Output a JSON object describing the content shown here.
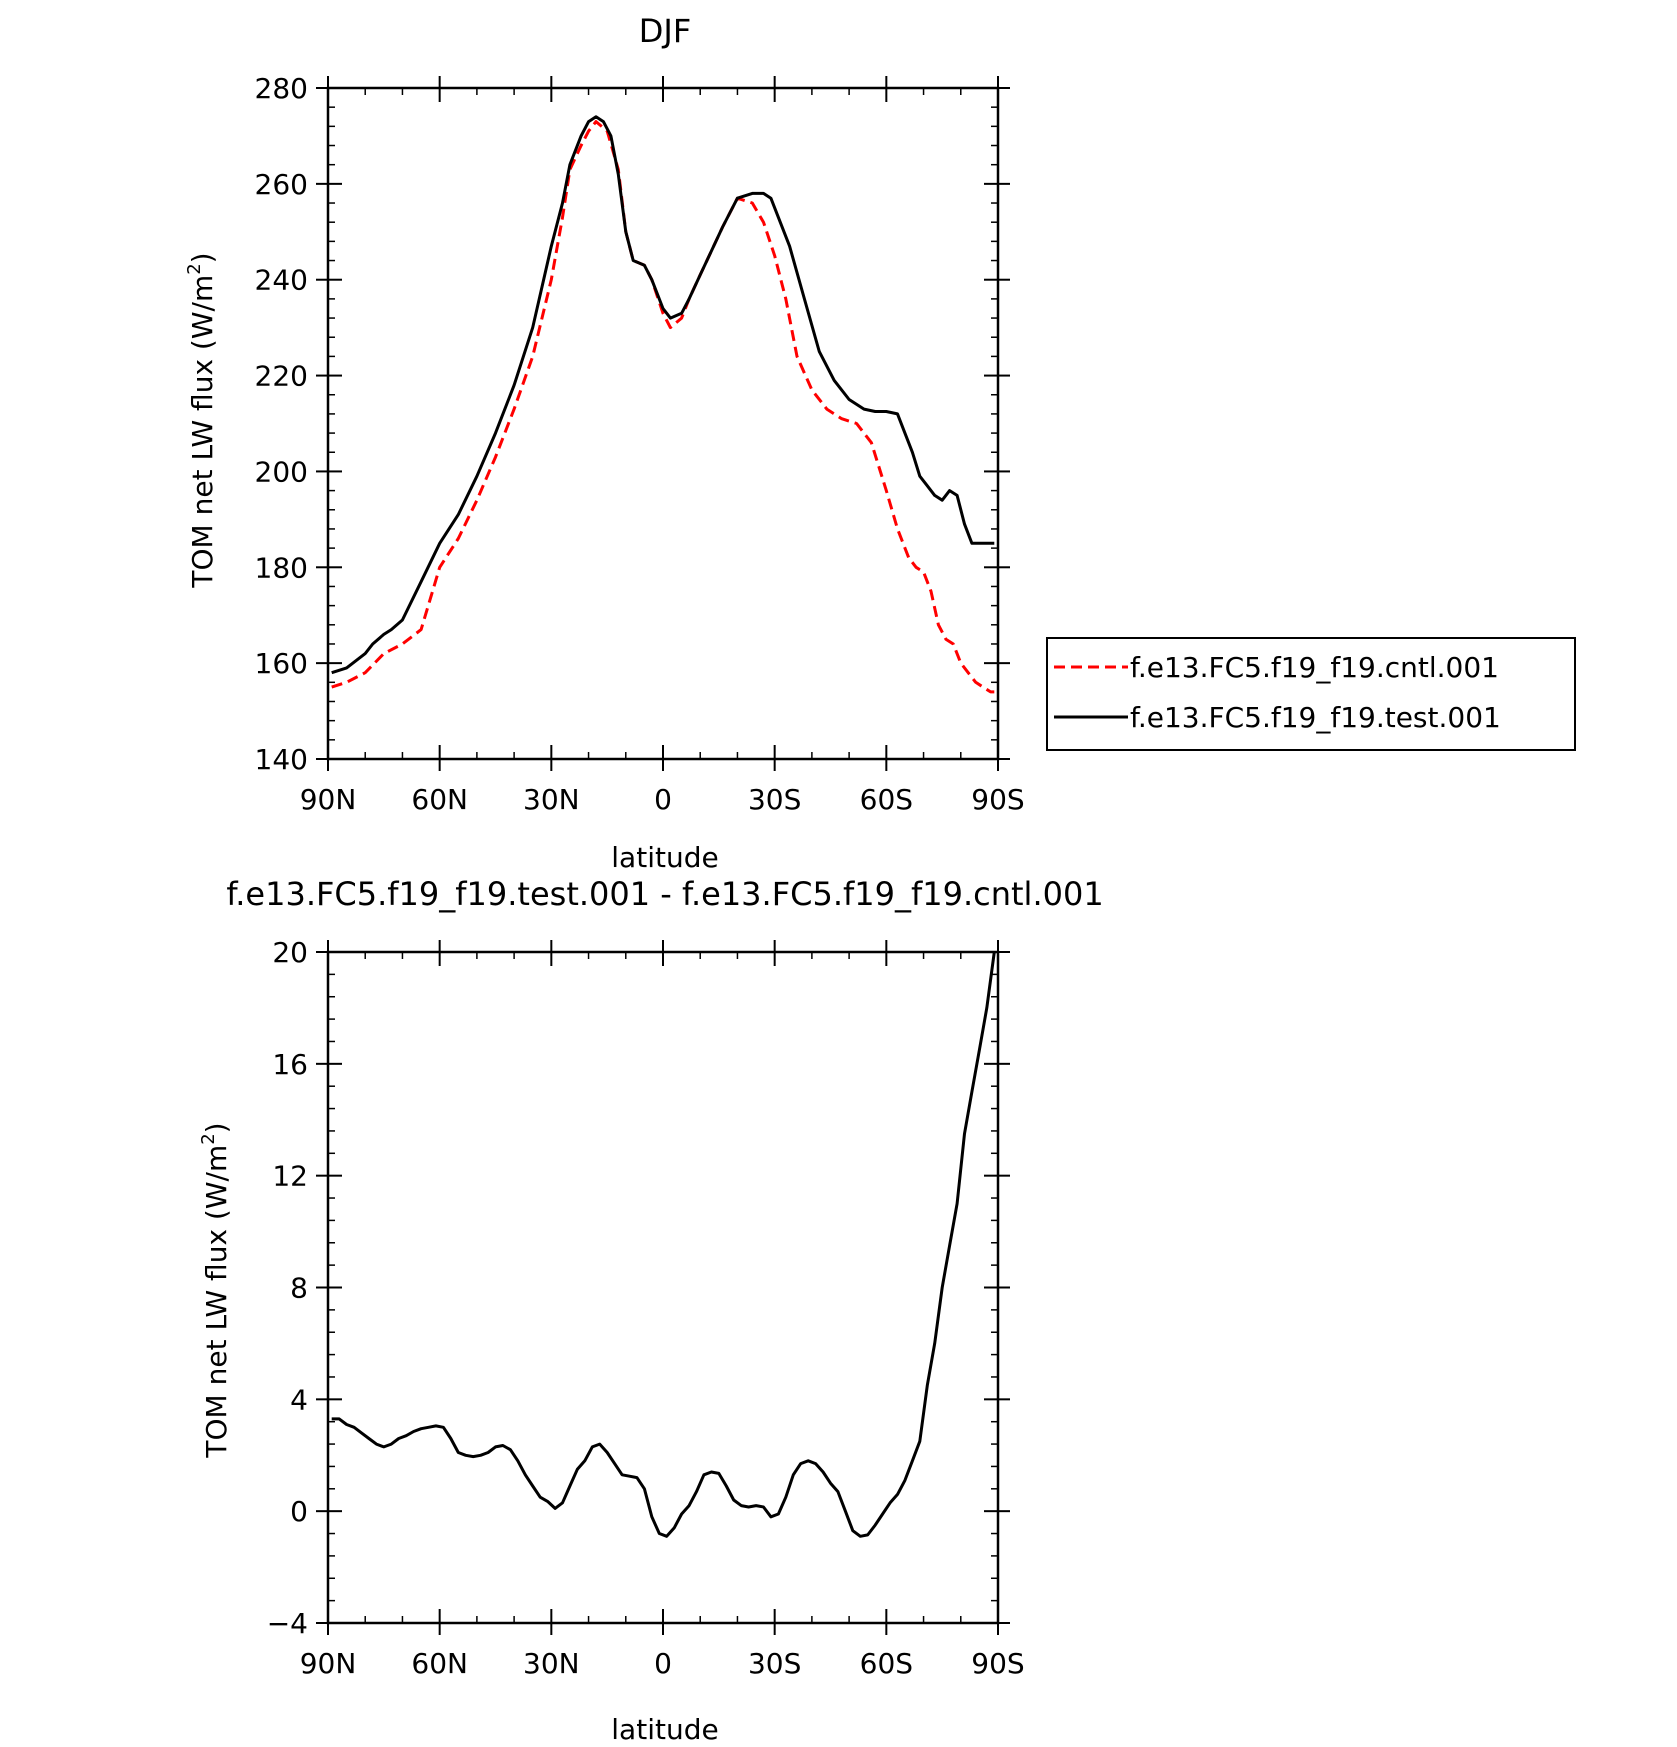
{
  "chart_data": [
    {
      "type": "line",
      "title": "DJF",
      "xlabel": "latitude",
      "ylabel": "TOM net LW flux (W/m",
      "ylabel_sup": "2",
      "ylabel_close": ")",
      "ylim": [
        140,
        280
      ],
      "yticks": [
        140,
        160,
        180,
        200,
        220,
        240,
        260,
        280
      ],
      "xlim": [
        90,
        -90
      ],
      "xticks": [
        90,
        60,
        30,
        0,
        -30,
        -60,
        -90
      ],
      "xtick_labels": [
        "90N",
        "60N",
        "30N",
        "0",
        "30S",
        "60S",
        "90S"
      ],
      "legend_position": "right",
      "series": [
        {
          "name": "f.e13.FC5.f19_f19.cntl.001",
          "color": "#ff0000",
          "dash": true,
          "x": [
            89,
            85,
            80,
            75,
            70,
            65,
            60,
            55,
            50,
            45,
            40,
            35,
            30,
            27,
            25,
            22,
            20,
            18,
            15,
            12,
            10,
            8,
            5,
            3,
            0,
            -2,
            -5,
            -7,
            -10,
            -13,
            -16,
            -20,
            -24,
            -27,
            -30,
            -33,
            -36,
            -40,
            -44,
            -48,
            -52,
            -56,
            -60,
            -63,
            -66,
            -68,
            -70,
            -72,
            -74,
            -76,
            -78,
            -80,
            -82,
            -84,
            -86,
            -88,
            -89
          ],
          "values": [
            155,
            156,
            158,
            162,
            164,
            167,
            180,
            186,
            194,
            203,
            213,
            224,
            240,
            253,
            263,
            268,
            271,
            273,
            271,
            263,
            250,
            244,
            243,
            240,
            233,
            230,
            232,
            236,
            241,
            246,
            251,
            257,
            256,
            252,
            245,
            236,
            224,
            217,
            213,
            211,
            210,
            206,
            196,
            188,
            182,
            180,
            179,
            175,
            168,
            165,
            164,
            160,
            158,
            156,
            155,
            154,
            154
          ]
        },
        {
          "name": "f.e13.FC5.f19_f19.test.001",
          "color": "#000000",
          "dash": false,
          "x": [
            89,
            85,
            80,
            78,
            75,
            73,
            70,
            65,
            60,
            55,
            50,
            45,
            40,
            35,
            30,
            27,
            25,
            22,
            20,
            18,
            16,
            14,
            12,
            10,
            8,
            5,
            3,
            0,
            -2,
            -5,
            -7,
            -10,
            -13,
            -16,
            -20,
            -24,
            -27,
            -29,
            -31,
            -34,
            -38,
            -42,
            -46,
            -50,
            -54,
            -57,
            -60,
            -63,
            -65,
            -67,
            -69,
            -71,
            -73,
            -75,
            -77,
            -79,
            -81,
            -83,
            -85,
            -87,
            -89
          ],
          "values": [
            158,
            159,
            162,
            164,
            166,
            167,
            169,
            177,
            185,
            191,
            199,
            208,
            218,
            230,
            247,
            256,
            264,
            270,
            273,
            274,
            273,
            270,
            262,
            250,
            244,
            243,
            240,
            234,
            232,
            233,
            236,
            241,
            246,
            251,
            257,
            258,
            258,
            257,
            253,
            247,
            236,
            225,
            219,
            215,
            213,
            212.5,
            212.5,
            212,
            208,
            204,
            199,
            197,
            195,
            194,
            196,
            195,
            189,
            185,
            185,
            185,
            185
          ]
        }
      ]
    },
    {
      "type": "line",
      "title": "f.e13.FC5.f19_f19.test.001 - f.e13.FC5.f19_f19.cntl.001",
      "xlabel": "latitude",
      "ylabel": "TOM net LW flux (W/m",
      "ylabel_sup": "2",
      "ylabel_close": ")",
      "ylim": [
        -4,
        20
      ],
      "yticks": [
        -4,
        0,
        4,
        8,
        12,
        16,
        20
      ],
      "ytick_labels": [
        "−4",
        "0",
        "4",
        "8",
        "12",
        "16",
        "20"
      ],
      "xlim": [
        90,
        -90
      ],
      "xticks": [
        90,
        60,
        30,
        0,
        -30,
        -60,
        -90
      ],
      "xtick_labels": [
        "90N",
        "60N",
        "30N",
        "0",
        "30S",
        "60S",
        "90S"
      ],
      "series": [
        {
          "color": "#000000",
          "x": [
            89,
            87,
            85,
            83,
            81,
            79,
            77,
            75,
            73,
            71,
            69,
            67,
            65,
            63,
            61,
            59,
            57,
            55,
            53,
            51,
            49,
            47,
            45,
            43,
            41,
            39,
            37,
            35,
            33,
            31,
            29,
            27,
            25,
            23,
            21,
            19,
            17,
            15,
            13,
            11,
            9,
            7,
            5,
            3,
            1,
            -1,
            -3,
            -5,
            -7,
            -9,
            -11,
            -13,
            -15,
            -17,
            -19,
            -21,
            -23,
            -25,
            -27,
            -29,
            -31,
            -33,
            -35,
            -37,
            -39,
            -41,
            -43,
            -45,
            -47,
            -49,
            -51,
            -53,
            -55,
            -57,
            -59,
            -61,
            -63,
            -65,
            -67,
            -69,
            -71,
            -73,
            -75,
            -77,
            -79,
            -81,
            -83,
            -85,
            -87,
            -89
          ],
          "values": [
            3.3,
            3.3,
            3.1,
            3.0,
            2.8,
            2.6,
            2.4,
            2.3,
            2.4,
            2.6,
            2.7,
            2.85,
            2.95,
            3.0,
            3.05,
            3.0,
            2.6,
            2.1,
            2.0,
            1.95,
            2.0,
            2.1,
            2.3,
            2.35,
            2.2,
            1.8,
            1.3,
            0.9,
            0.5,
            0.35,
            0.1,
            0.3,
            0.9,
            1.5,
            1.8,
            2.3,
            2.4,
            2.1,
            1.7,
            1.3,
            1.25,
            1.2,
            0.8,
            -0.2,
            -0.8,
            -0.9,
            -0.6,
            -0.1,
            0.2,
            0.7,
            1.3,
            1.4,
            1.35,
            0.9,
            0.4,
            0.2,
            0.15,
            0.2,
            0.15,
            -0.2,
            -0.1,
            0.5,
            1.3,
            1.7,
            1.8,
            1.7,
            1.4,
            1.0,
            0.7,
            0.0,
            -0.7,
            -0.9,
            -0.85,
            -0.5,
            -0.1,
            0.3,
            0.6,
            1.1,
            1.8,
            2.5,
            4.5,
            6.0,
            8.0,
            9.5,
            11.0,
            13.5,
            15.0,
            16.5,
            18.0,
            20.0
          ]
        }
      ]
    }
  ]
}
